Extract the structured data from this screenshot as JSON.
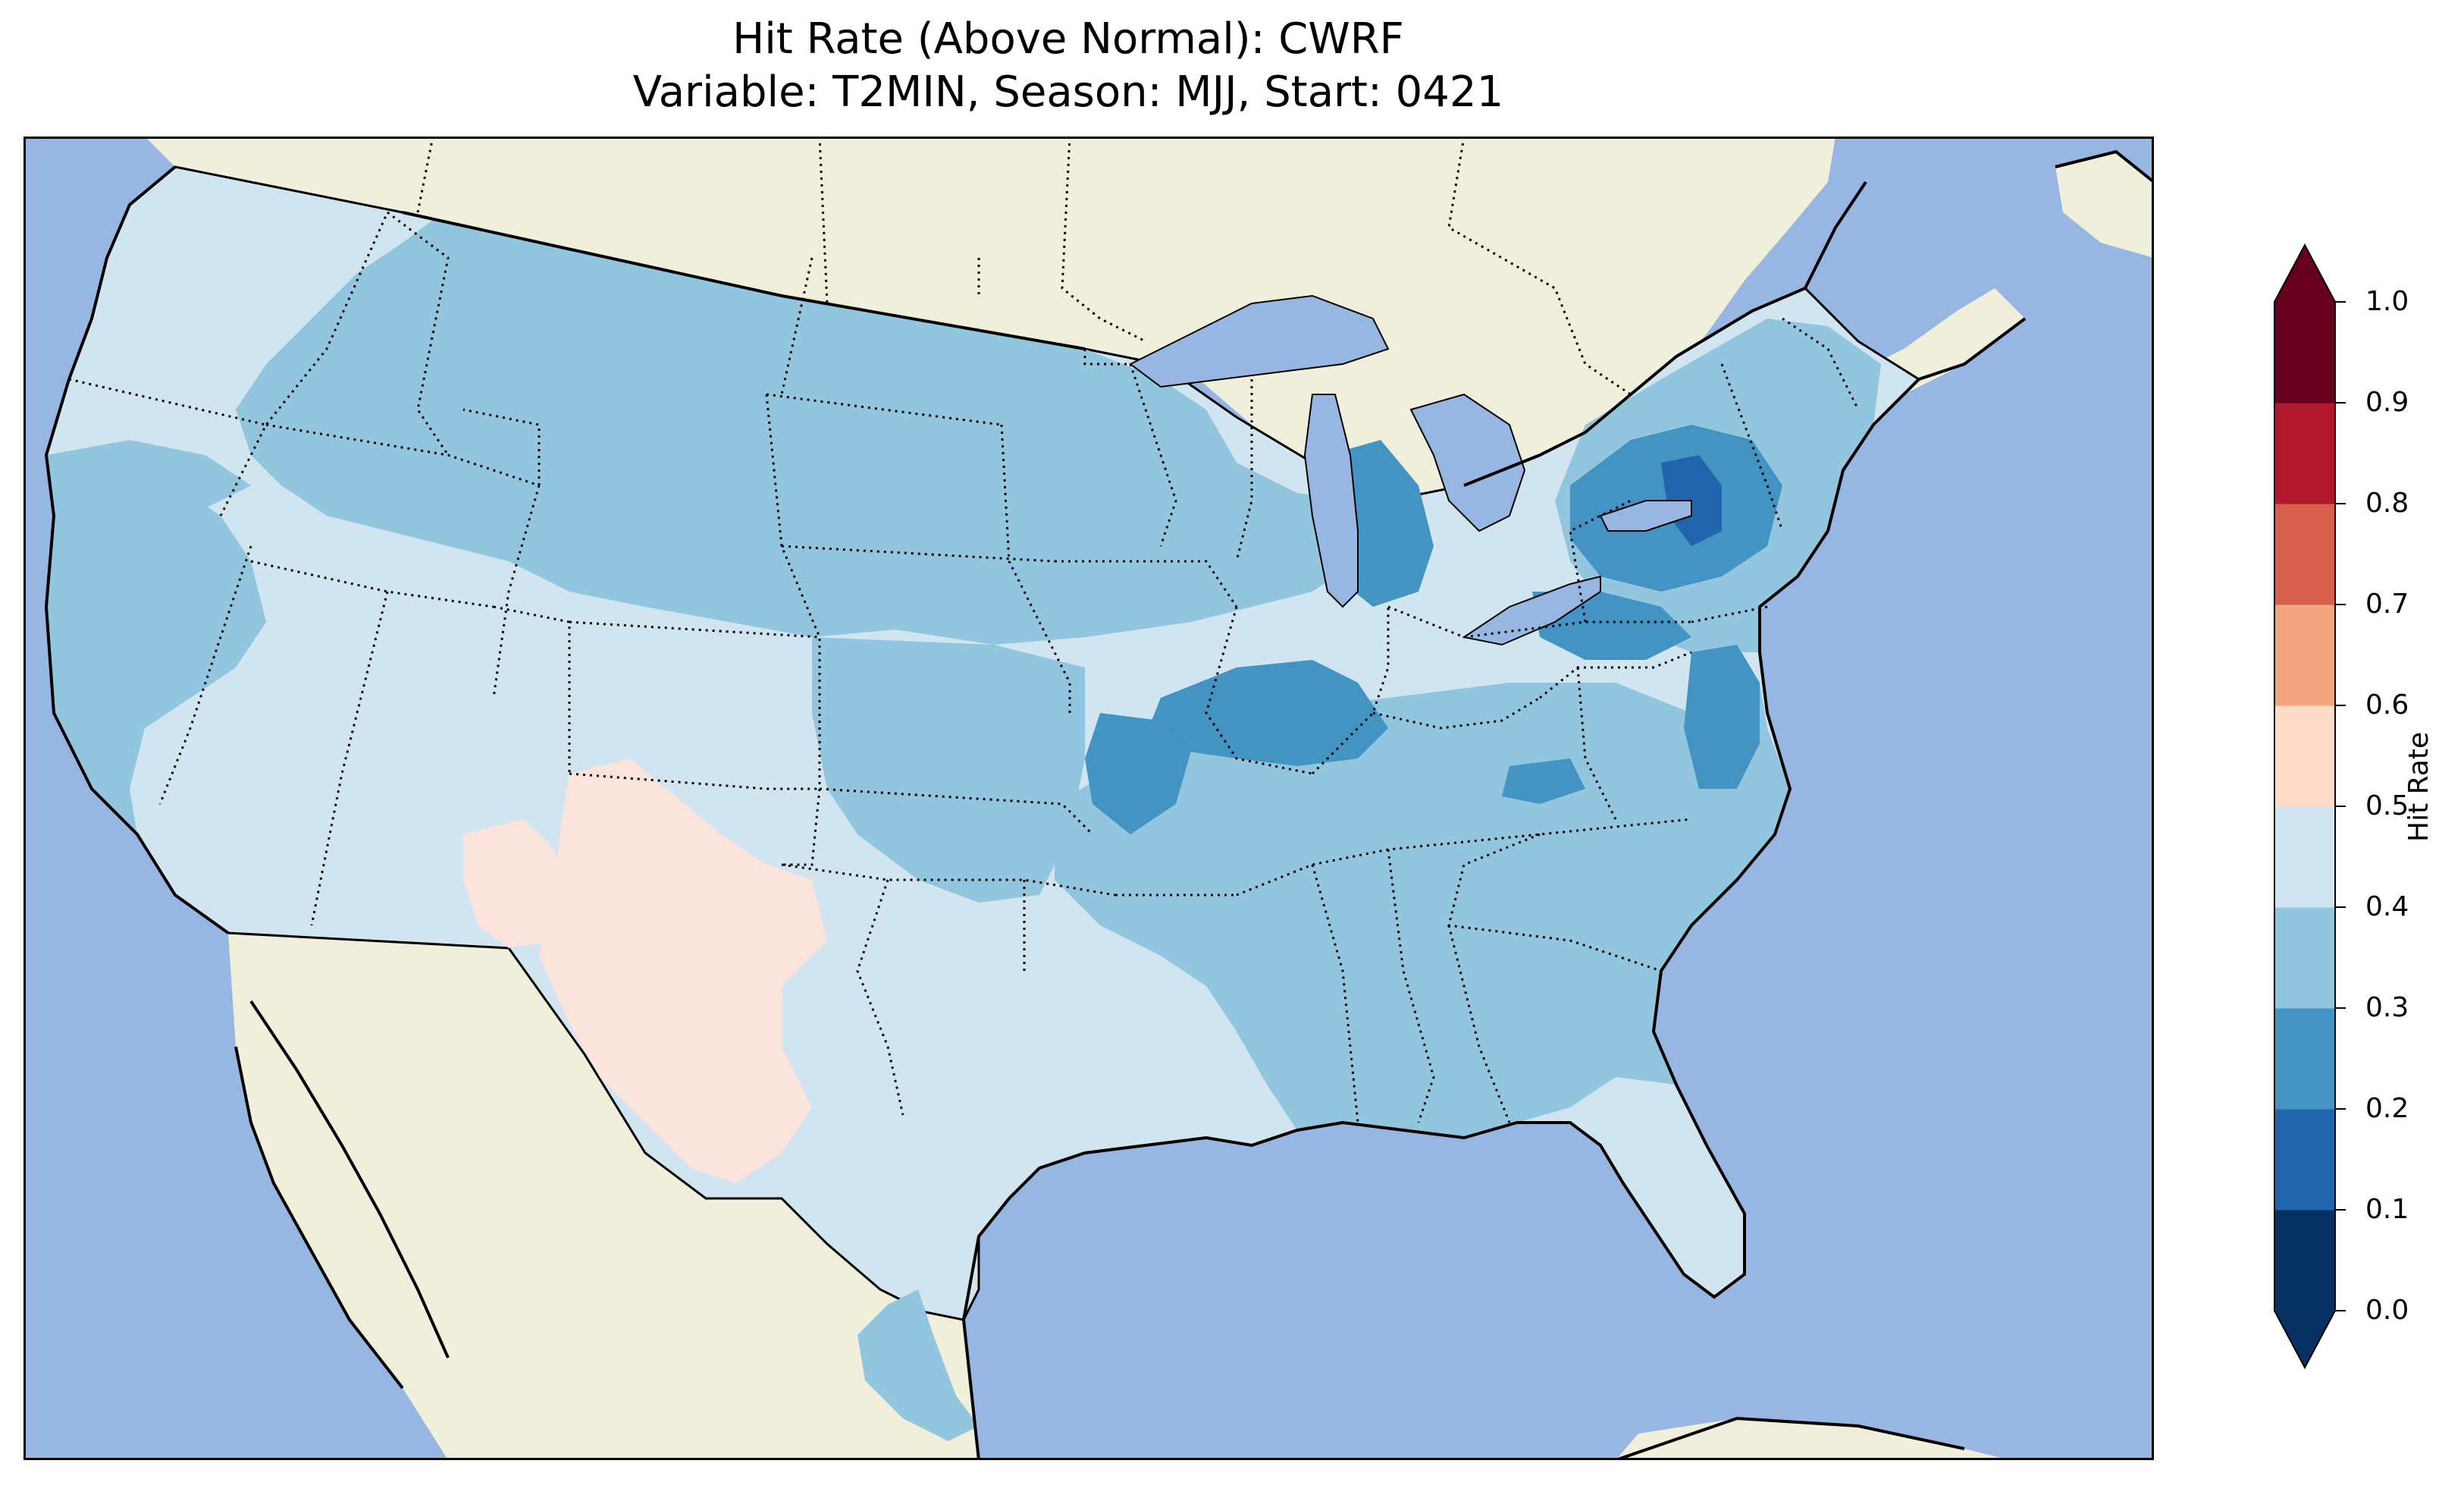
{
  "title": {
    "line1": "Hit Rate (Above Normal): CWRF",
    "line2": "Variable: T2MIN, Season: MJJ, Start: 0421"
  },
  "colorbar": {
    "label": "Hit Rate",
    "ticks": [
      "0.0",
      "0.1",
      "0.2",
      "0.3",
      "0.4",
      "0.5",
      "0.6",
      "0.7",
      "0.8",
      "0.9",
      "1.0"
    ],
    "colors": [
      "#053061",
      "#2166ac",
      "#4393c3",
      "#92c5de",
      "#d1e5f0",
      "#fddbc7",
      "#f4a582",
      "#d6604d",
      "#b2182b",
      "#67001f"
    ],
    "extend_low": "#053061",
    "extend_high": "#67001f"
  },
  "map": {
    "ocean_color": "#97b6e1",
    "land_color": "#efefdb",
    "regions": [
      {
        "name": "West coast / Northwest",
        "hit_rate_bin": "0.4-0.5"
      },
      {
        "name": "Northern Plains",
        "hit_rate_bin": "0.3-0.4"
      },
      {
        "name": "Southwest / Colorado Plateau",
        "hit_rate_bin": "0.5-0.6"
      },
      {
        "name": "Texas / Southern Plains",
        "hit_rate_bin": "0.4-0.5"
      },
      {
        "name": "Michigan / Ohio Valley",
        "hit_rate_bin": "0.2-0.3"
      },
      {
        "name": "New York / Pennsylvania",
        "hit_rate_bin": "0.1-0.3"
      },
      {
        "name": "Southeast",
        "hit_rate_bin": "0.3-0.4"
      },
      {
        "name": "Florida",
        "hit_rate_bin": "0.4-0.5"
      }
    ]
  }
}
